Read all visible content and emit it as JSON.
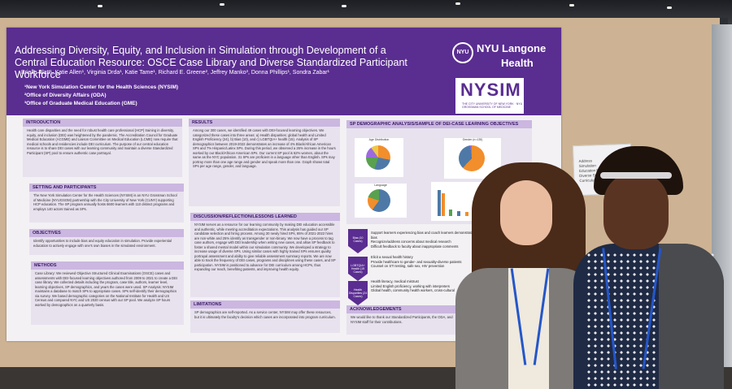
{
  "poster": {
    "title_line1": "Addressing Diversity, Equity, and Inclusion in Simulation through Development of a",
    "title_line2": "Central Education Resource: OSCE Case Library and Diverse Standardized Participant Workforce",
    "authors": "Brielle Blatt¹, Katie Allen¹, Virginia Drda¹, Katie Tame¹, Richard E. Greene², Jeffrey Manko³, Donna Phillips¹, Sondra Zabar¹",
    "affiliations": [
      "¹New York Simulation Center for the Health Sciences (NYSIM)",
      "²Office of Diversity Affairs (ODA)",
      "³Office of Graduate Medical Education (GME)"
    ],
    "logo_nyu_top": "NYU Langone",
    "logo_nyu_bottom": "Health",
    "logo_nyu_circle": "NYU",
    "logo_nysim": "NYSIM",
    "logo_nysim_sub": "THE CITY UNIVERSITY OF NEW YORK · NYU GROSSMAN SCHOOL OF MEDICINE",
    "sections": {
      "introduction": {
        "heading": "INTRODUCTION",
        "body": "Health care disparities and the need for robust health care professional (HCP) training in diversity, equity, and inclusion (DEI) was heightened by the pandemic. The Accreditation Council for Graduate Medical Education (ACGME) and Liaison Committee on Medical Education (LCME) now require that medical schools and residencies include DEI curriculum. The purpose of our central education resource is to share DEI cases with our learning community and maintain a diverse Standardized Participant (SP) pool to ensure authentic case portrayal."
      },
      "setting": {
        "heading": "SETTING AND PARTICIPANTS",
        "body": "The New York Simulation Center for the Health Sciences (NYSIM) is an NYU Grossman School of Medicine (NYUGSOM) partnership with the City University of New York (CUNY) supporting HCP education. The SP program annually hosts 6600 learners with 110 distinct programs and employs 140 actors trained as SPs."
      },
      "objectives": {
        "heading": "OBJECTIVES",
        "body": "Identify opportunities to include bias and equity education in simulation. Provide experiential education to actively engage with one's own biases in the simulated environment."
      },
      "methods": {
        "heading": "METHODS",
        "body": "Case Library: We reviewed Objective Structured Clinical Examinations (OSCE) cases and assessments with DEI-focused learning objectives authored from 2009 to 2021 to create a DEI case library. We collected details including the program, case title, authors, learner level, learning objectives, SP demographics, and years the cases were used. SP Analysis: NYSIM maintains a database to match SPs to appropriate cases. SPs self-identify their demographics via survey. We based demographic categories on the National Institute for Health and US Census and compared NYC and US 2020 census with our SP pool. We analyze SP hours worked by demographics on a quarterly basis."
      },
      "results": {
        "heading": "RESULTS",
        "body": "Among our 300 cases, we identified 49 cases with DEI-focused learning objectives. We categorized these cases into three areas: a) Health disparities: global health and Limited English Proficiency (24), b) Bias (10), and c) LGBTQIA+ health (15). Analysis of SP demographics between 2019-2022 demonstrates an increase of 4% Black/African American SPs and 7% Hispanic/Latinx SPs. During this period, we observed a 26% increase in the hours worked by our Black/African American SPs. Our current SP pool is 62% women, about the same as the NYC population. 31 SPs are proficient in a language other than English. SPs may portray more than one age range and gender and speak more than one. Graph shows total SPs per age range, gender, and language."
      },
      "discussion": {
        "heading": "DISCUSSION/REFLECTION/LESSONS LEARNED",
        "body": "NYSIM serves as a resource for our learning community by making DEI education accessible and authentic, while meeting accreditation expectations. This analysis has guided our SP candidate selection and hiring process. Among 30 newly hired SPs, 65% of 2021-2022 hires are non-white and 25% identify as transgender or non-binary. We now have a process to tag case authors, engage with DEI leadership when writing new cases, and allow SP feedback to foster a shared mental model within our simulation community. We developed a strategy to increase usage of diverse SPs. Using similar cases with highly trained SPs ensures quality portrayal assessment and ability to give reliable assessment summary reports. We are now able to track the frequency of DEI cases, programs and disciplines using these cases, and SP participation. NYSIM is positioned to advance for DEI curriculum among HCPs, thus expanding our reach, benefiting patients, and improving health equity."
      },
      "limitations": {
        "heading": "LIMITATIONS",
        "body": "SP demographics are self-reported. As a service center, NYSIM may offer these resources, but it is ultimately the faculty's decision which cases are incorporated into program curriculum."
      },
      "demographics": {
        "heading": "SP DEMOGRAPHIC ANALYSIS/SAMPLE OF DEI-CASE LEARNING OBJECTIVES",
        "chart_labels": [
          "Age Distribution",
          "Gender (n=135)",
          "Language"
        ]
      },
      "objectives_list": {
        "arrows": [
          "Bias (10 Cases)",
          "LGBTQIA+ Health (15 Cases)",
          "Health Disparities (24 Cases)"
        ],
        "bias": [
          "Support learners experiencing bias and coach learners demonstrating bias",
          "Recognize/address concerns about medical research",
          "Difficult feedback to faculty about inappropriate comments"
        ],
        "lgbtq": [
          "Elicit a sexual health history",
          "Provide healthcare to gender- and sexuality-diverse patients",
          "Counsel on STI testing, safe sex, HIV prevention"
        ],
        "disparities": [
          "Health literacy, medical mistrust",
          "Limited English proficiency, working with interpreters",
          "Global health, community health workers, cross-cultural"
        ]
      },
      "acknowledgements": {
        "heading": "ACKNOWLEDGEMENTS",
        "body": "We would like to thank our Standardized Participants, the ODA, and NYSIM staff for their contributions."
      }
    }
  },
  "side_card": {
    "lines": [
      "Address",
      "Simulation",
      "Education Res",
      "Diverse Stand",
      "Curriculum Res"
    ]
  },
  "colors": {
    "purple": "#5a2d91",
    "light_purple": "#cbb7e0",
    "board": "#cdb393"
  }
}
